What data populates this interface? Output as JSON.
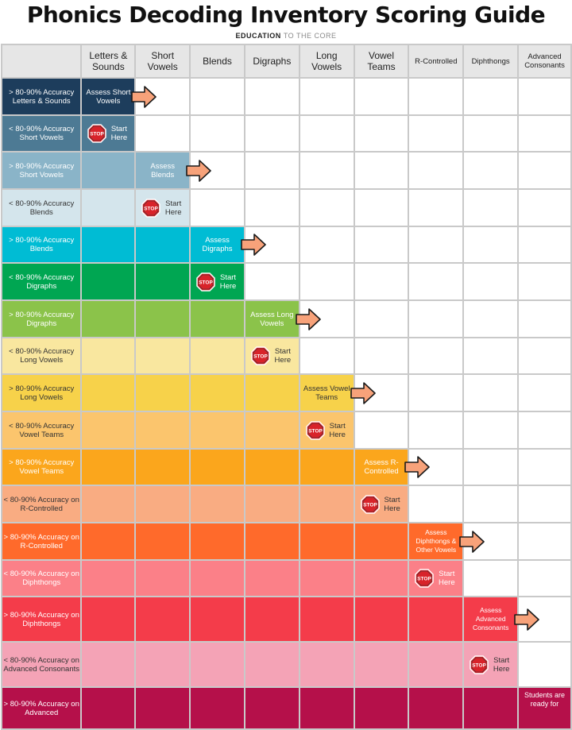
{
  "title": "Phonics Decoding Inventory Scoring Guide",
  "brand": {
    "bold": "EDUCATION",
    "light": "TO THE CORE"
  },
  "columns": [
    "Letters & Sounds",
    "Short Vowels",
    "Blends",
    "Digraphs",
    "Long Vowels",
    "Vowel Teams",
    "R-Controlled",
    "Diphthongs",
    "Advanced Consonants"
  ],
  "stop_label": "STOP",
  "rows": [
    {
      "label": "> 80-90% Accuracy Letters & Sounds",
      "color": "#1d3d5c",
      "text_dark": false,
      "fill": 1,
      "action": {
        "type": "assess",
        "col": 0,
        "text": "Assess Short Vowels"
      }
    },
    {
      "label": "< 80-90% Accuracy Short Vowels",
      "color": "#4d7a94",
      "text_dark": false,
      "fill": 1,
      "action": {
        "type": "stop",
        "col": 0,
        "text": "Start Here"
      }
    },
    {
      "label": "> 80-90% Accuracy Short Vowels",
      "color": "#8ab4c8",
      "text_dark": false,
      "fill": 2,
      "action": {
        "type": "assess",
        "col": 1,
        "text": "Assess Blends"
      }
    },
    {
      "label": "< 80-90% Accuracy Blends",
      "color": "#d4e5ec",
      "text_dark": true,
      "fill": 1,
      "action": {
        "type": "stop",
        "col": 1,
        "text": "Start Here"
      }
    },
    {
      "label": "> 80-90% Accuracy Blends",
      "color": "#00bcd4",
      "text_dark": false,
      "fill": 3,
      "action": {
        "type": "assess",
        "col": 2,
        "text": "Assess Digraphs"
      }
    },
    {
      "label": "< 80-90% Accuracy Digraphs",
      "color": "#00a652",
      "text_dark": false,
      "fill": 2,
      "action": {
        "type": "stop",
        "col": 2,
        "text": "Start Here"
      }
    },
    {
      "label": "> 80-90% Accuracy Digraphs",
      "color": "#8bc34a",
      "text_dark": false,
      "fill": 4,
      "action": {
        "type": "assess",
        "col": 3,
        "text": "Assess Long Vowels"
      }
    },
    {
      "label": "< 80-90% Accuracy Long Vowels",
      "color": "#f9e79f",
      "text_dark": true,
      "fill": 3,
      "action": {
        "type": "stop",
        "col": 3,
        "text": "Start Here"
      }
    },
    {
      "label": "> 80-90% Accuracy Long Vowels",
      "color": "#f7d24a",
      "text_dark": true,
      "fill": 5,
      "action": {
        "type": "assess",
        "col": 4,
        "text": "Assess Vowel Teams"
      }
    },
    {
      "label": "< 80-90% Accuracy Vowel Teams",
      "color": "#fbc56d",
      "text_dark": true,
      "fill": 4,
      "action": {
        "type": "stop",
        "col": 4,
        "text": "Start Here"
      }
    },
    {
      "label": "> 80-90% Accuracy Vowel Teams",
      "color": "#fba61c",
      "text_dark": false,
      "fill": 6,
      "action": {
        "type": "assess",
        "col": 5,
        "text": "Assess R-Controlled"
      }
    },
    {
      "label": "< 80-90% Accuracy on R-Controlled",
      "color": "#f9ac82",
      "text_dark": true,
      "fill": 5,
      "action": {
        "type": "stop",
        "col": 5,
        "text": "Start Here"
      }
    },
    {
      "label": "> 80-90% Accuracy on R-Controlled",
      "color": "#ff6a2b",
      "text_dark": false,
      "fill": 7,
      "action": {
        "type": "assess",
        "col": 6,
        "text": "Assess Diphthongs & Other Vowels"
      }
    },
    {
      "label": "< 80-90% Accuracy on Diphthongs",
      "color": "#fb8088",
      "text_dark": false,
      "fill": 6,
      "action": {
        "type": "stop",
        "col": 6,
        "text": "Start Here"
      }
    },
    {
      "label": "> 80-90% Accuracy on Diphthongs",
      "color": "#f43c4a",
      "text_dark": false,
      "fill": 8,
      "action": {
        "type": "assess",
        "col": 7,
        "text": "Assess Advanced Consonants"
      }
    },
    {
      "label": "< 80-90% Accuracy on Advanced Consonants",
      "color": "#f4a3b6",
      "text_dark": true,
      "fill": 7,
      "action": {
        "type": "stop",
        "col": 7,
        "text": "Start Here"
      }
    },
    {
      "label": "> 80-90% Accuracy on Advanced",
      "color": "#b5104a",
      "text_dark": false,
      "fill": 9,
      "action": {
        "type": "final",
        "col": 8,
        "text": "Students are ready for"
      }
    }
  ]
}
